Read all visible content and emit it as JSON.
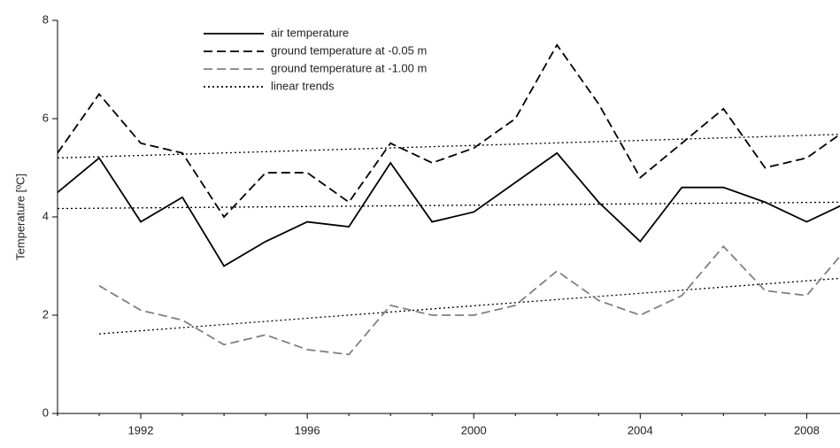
{
  "chart_data": {
    "type": "line",
    "ylabel": "Temperature [ºC]",
    "x": [
      1990,
      1991,
      1992,
      1993,
      1994,
      1995,
      1996,
      1997,
      1998,
      1999,
      2000,
      2001,
      2002,
      2003,
      2004,
      2005,
      2006,
      2007,
      2008,
      2009
    ],
    "series": [
      {
        "name": "air temperature",
        "color": "#000000",
        "dash": "solid",
        "values": [
          4.5,
          5.2,
          3.9,
          4.4,
          3.0,
          3.5,
          3.9,
          3.8,
          5.1,
          3.9,
          4.1,
          4.7,
          5.3,
          4.3,
          3.5,
          4.6,
          4.6,
          4.3,
          3.9,
          4.3
        ]
      },
      {
        "name": "ground temperature at -0.05 m",
        "color": "#000000",
        "dash": "dashed",
        "values": [
          5.3,
          6.5,
          5.5,
          5.3,
          4.0,
          4.9,
          4.9,
          4.3,
          5.5,
          5.1,
          5.4,
          6.0,
          7.5,
          6.3,
          4.8,
          5.5,
          6.2,
          5.0,
          5.2,
          5.8
        ]
      },
      {
        "name": "ground temperature at -1.00 m",
        "color": "#808080",
        "dash": "dashed",
        "values": [
          null,
          2.6,
          2.1,
          1.9,
          1.4,
          1.6,
          1.3,
          1.2,
          2.2,
          2.0,
          2.0,
          2.2,
          2.9,
          2.3,
          2.0,
          2.4,
          3.4,
          2.5,
          2.4,
          3.4
        ]
      }
    ],
    "trends": {
      "name": "linear trends",
      "color": "#000000",
      "dash": "dotted",
      "lines": [
        {
          "x": [
            1990,
            2008.8
          ],
          "values": [
            5.2,
            5.68
          ]
        },
        {
          "x": [
            1990,
            2008.8
          ],
          "values": [
            4.17,
            4.3
          ]
        },
        {
          "x": [
            1991,
            2008.8
          ],
          "values": [
            1.62,
            2.75
          ]
        }
      ]
    },
    "xlim": [
      1990,
      2008.8
    ],
    "ylim": [
      0,
      8
    ],
    "xticks": [
      1992,
      1996,
      2000,
      2004,
      2008
    ],
    "xminorticks": [
      1990,
      1991,
      1993,
      1994,
      1995,
      1997,
      1998,
      1999,
      2001,
      2002,
      2003,
      2005,
      2006,
      2007
    ],
    "yticks": [
      0,
      2,
      4,
      6,
      8
    ],
    "legend": "top-left"
  }
}
